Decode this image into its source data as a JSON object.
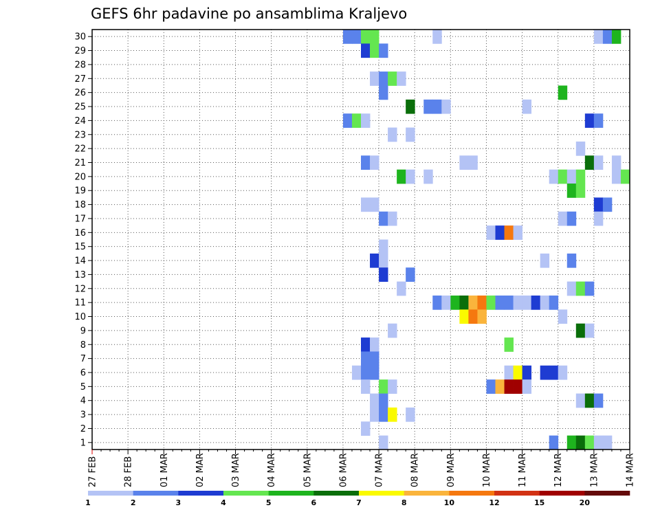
{
  "chart_data": {
    "type": "heatmap",
    "title": "GEFS 6hr padavine po ansamblima Kraljevo",
    "x_dates": [
      "27 FEB",
      "28 FEB",
      "01 MAR",
      "02 MAR",
      "03 MAR",
      "04 MAR",
      "05 MAR",
      "06 MAR",
      "07 MAR",
      "08 MAR",
      "09 MAR",
      "10 MAR",
      "11 MAR",
      "12 MAR",
      "13 MAR",
      "14 MAR"
    ],
    "ylim": [
      0.5,
      30.5
    ],
    "y_ticks": [
      "1",
      "2",
      "3",
      "4",
      "5",
      "6",
      "7",
      "8",
      "9",
      "10",
      "11",
      "12",
      "13",
      "14",
      "15",
      "16",
      "17",
      "18",
      "19",
      "20",
      "21",
      "22",
      "23",
      "24",
      "25",
      "26",
      "27",
      "28",
      "29",
      "30"
    ],
    "grid": "dotted",
    "legend": {
      "placement": "bottom",
      "labels": [
        "1",
        "2",
        "3",
        "4",
        "5",
        "6",
        "7",
        "8",
        "10",
        "12",
        "15",
        "20"
      ],
      "colors": [
        "#b4c3f5",
        "#5a82eb",
        "#1e3cd2",
        "#64e650",
        "#1eb41e",
        "#0a6e0a",
        "#fafa00",
        "#fab43c",
        "#f5780f",
        "#d23214",
        "#a00000",
        "#640a0a"
      ]
    },
    "cell_days": 0.25,
    "cells": [
      {
        "ens": 30,
        "t": 7.0,
        "c": 1
      },
      {
        "ens": 30,
        "t": 7.25,
        "c": 1
      },
      {
        "ens": 30,
        "t": 7.5,
        "c": 3
      },
      {
        "ens": 30,
        "t": 7.75,
        "c": 3
      },
      {
        "ens": 30,
        "t": 9.5,
        "c": 0
      },
      {
        "ens": 30,
        "t": 14.0,
        "c": 0
      },
      {
        "ens": 30,
        "t": 14.25,
        "c": 1
      },
      {
        "ens": 30,
        "t": 14.5,
        "c": 4
      },
      {
        "ens": 29,
        "t": 7.5,
        "c": 2
      },
      {
        "ens": 29,
        "t": 7.75,
        "c": 3
      },
      {
        "ens": 29,
        "t": 8.0,
        "c": 1
      },
      {
        "ens": 27,
        "t": 7.75,
        "c": 0
      },
      {
        "ens": 27,
        "t": 8.0,
        "c": 1
      },
      {
        "ens": 27,
        "t": 8.25,
        "c": 3
      },
      {
        "ens": 27,
        "t": 8.5,
        "c": 0
      },
      {
        "ens": 26,
        "t": 8.0,
        "c": 1
      },
      {
        "ens": 26,
        "t": 13.0,
        "c": 4
      },
      {
        "ens": 25,
        "t": 8.75,
        "c": 5
      },
      {
        "ens": 25,
        "t": 9.25,
        "c": 1
      },
      {
        "ens": 25,
        "t": 9.5,
        "c": 1
      },
      {
        "ens": 25,
        "t": 9.75,
        "c": 0
      },
      {
        "ens": 25,
        "t": 12.0,
        "c": 0
      },
      {
        "ens": 24,
        "t": 7.0,
        "c": 1
      },
      {
        "ens": 24,
        "t": 7.25,
        "c": 3
      },
      {
        "ens": 24,
        "t": 7.5,
        "c": 0
      },
      {
        "ens": 24,
        "t": 13.75,
        "c": 2
      },
      {
        "ens": 24,
        "t": 14.0,
        "c": 1
      },
      {
        "ens": 23,
        "t": 8.25,
        "c": 0
      },
      {
        "ens": 23,
        "t": 8.75,
        "c": 0
      },
      {
        "ens": 22,
        "t": 13.5,
        "c": 0
      },
      {
        "ens": 21,
        "t": 7.5,
        "c": 1
      },
      {
        "ens": 21,
        "t": 7.75,
        "c": 0
      },
      {
        "ens": 21,
        "t": 10.25,
        "c": 0
      },
      {
        "ens": 21,
        "t": 10.5,
        "c": 0
      },
      {
        "ens": 21,
        "t": 13.75,
        "c": 5
      },
      {
        "ens": 21,
        "t": 14.0,
        "c": 0
      },
      {
        "ens": 21,
        "t": 14.5,
        "c": 0
      },
      {
        "ens": 20,
        "t": 8.5,
        "c": 4
      },
      {
        "ens": 20,
        "t": 8.75,
        "c": 0
      },
      {
        "ens": 20,
        "t": 9.25,
        "c": 0
      },
      {
        "ens": 20,
        "t": 12.75,
        "c": 0
      },
      {
        "ens": 20,
        "t": 13.0,
        "c": 3
      },
      {
        "ens": 20,
        "t": 13.25,
        "c": 0
      },
      {
        "ens": 20,
        "t": 13.5,
        "c": 3
      },
      {
        "ens": 20,
        "t": 14.5,
        "c": 0
      },
      {
        "ens": 20,
        "t": 14.75,
        "c": 3
      },
      {
        "ens": 19,
        "t": 13.25,
        "c": 4
      },
      {
        "ens": 19,
        "t": 13.5,
        "c": 3
      },
      {
        "ens": 18,
        "t": 7.5,
        "c": 0
      },
      {
        "ens": 18,
        "t": 7.75,
        "c": 0
      },
      {
        "ens": 18,
        "t": 14.0,
        "c": 2
      },
      {
        "ens": 18,
        "t": 14.25,
        "c": 1
      },
      {
        "ens": 17,
        "t": 8.0,
        "c": 1
      },
      {
        "ens": 17,
        "t": 8.25,
        "c": 0
      },
      {
        "ens": 17,
        "t": 13.0,
        "c": 0
      },
      {
        "ens": 17,
        "t": 13.25,
        "c": 1
      },
      {
        "ens": 17,
        "t": 14.0,
        "c": 0
      },
      {
        "ens": 16,
        "t": 11.0,
        "c": 0
      },
      {
        "ens": 16,
        "t": 11.25,
        "c": 2
      },
      {
        "ens": 16,
        "t": 11.5,
        "c": 8
      },
      {
        "ens": 16,
        "t": 11.75,
        "c": 0
      },
      {
        "ens": 15,
        "t": 8.0,
        "c": 0
      },
      {
        "ens": 14,
        "t": 7.75,
        "c": 2
      },
      {
        "ens": 14,
        "t": 8.0,
        "c": 0
      },
      {
        "ens": 14,
        "t": 12.5,
        "c": 0
      },
      {
        "ens": 14,
        "t": 13.25,
        "c": 1
      },
      {
        "ens": 13,
        "t": 8.0,
        "c": 2
      },
      {
        "ens": 13,
        "t": 8.75,
        "c": 1
      },
      {
        "ens": 12,
        "t": 8.5,
        "c": 0
      },
      {
        "ens": 12,
        "t": 13.25,
        "c": 0
      },
      {
        "ens": 12,
        "t": 13.5,
        "c": 3
      },
      {
        "ens": 12,
        "t": 13.75,
        "c": 1
      },
      {
        "ens": 11,
        "t": 9.5,
        "c": 1
      },
      {
        "ens": 11,
        "t": 9.75,
        "c": 0
      },
      {
        "ens": 11,
        "t": 10.0,
        "c": 4
      },
      {
        "ens": 11,
        "t": 10.25,
        "c": 5
      },
      {
        "ens": 11,
        "t": 10.5,
        "c": 7
      },
      {
        "ens": 11,
        "t": 10.75,
        "c": 8
      },
      {
        "ens": 11,
        "t": 11.0,
        "c": 3
      },
      {
        "ens": 11,
        "t": 11.25,
        "c": 1
      },
      {
        "ens": 11,
        "t": 11.5,
        "c": 1
      },
      {
        "ens": 11,
        "t": 11.75,
        "c": 0
      },
      {
        "ens": 11,
        "t": 12.0,
        "c": 0
      },
      {
        "ens": 11,
        "t": 12.25,
        "c": 2
      },
      {
        "ens": 11,
        "t": 12.5,
        "c": 0
      },
      {
        "ens": 11,
        "t": 12.75,
        "c": 1
      },
      {
        "ens": 10,
        "t": 10.25,
        "c": 6
      },
      {
        "ens": 10,
        "t": 10.5,
        "c": 8
      },
      {
        "ens": 10,
        "t": 10.75,
        "c": 7
      },
      {
        "ens": 10,
        "t": 13.0,
        "c": 0
      },
      {
        "ens": 9,
        "t": 8.25,
        "c": 0
      },
      {
        "ens": 9,
        "t": 13.5,
        "c": 5
      },
      {
        "ens": 9,
        "t": 13.75,
        "c": 0
      },
      {
        "ens": 8,
        "t": 7.5,
        "c": 2
      },
      {
        "ens": 8,
        "t": 7.75,
        "c": 0
      },
      {
        "ens": 8,
        "t": 11.5,
        "c": 3
      },
      {
        "ens": 7,
        "t": 7.5,
        "c": 1
      },
      {
        "ens": 7,
        "t": 7.75,
        "c": 1
      },
      {
        "ens": 6,
        "t": 7.25,
        "c": 0
      },
      {
        "ens": 6,
        "t": 7.5,
        "c": 1
      },
      {
        "ens": 6,
        "t": 7.75,
        "c": 1
      },
      {
        "ens": 6,
        "t": 11.5,
        "c": 0
      },
      {
        "ens": 6,
        "t": 11.75,
        "c": 6
      },
      {
        "ens": 6,
        "t": 12.0,
        "c": 2
      },
      {
        "ens": 6,
        "t": 12.5,
        "c": 2
      },
      {
        "ens": 6,
        "t": 12.75,
        "c": 2
      },
      {
        "ens": 6,
        "t": 13.0,
        "c": 0
      },
      {
        "ens": 5,
        "t": 7.5,
        "c": 0
      },
      {
        "ens": 5,
        "t": 8.0,
        "c": 3
      },
      {
        "ens": 5,
        "t": 8.25,
        "c": 0
      },
      {
        "ens": 5,
        "t": 11.0,
        "c": 1
      },
      {
        "ens": 5,
        "t": 11.25,
        "c": 7
      },
      {
        "ens": 5,
        "t": 11.5,
        "c": 10
      },
      {
        "ens": 5,
        "t": 11.75,
        "c": 10
      },
      {
        "ens": 5,
        "t": 12.0,
        "c": 0
      },
      {
        "ens": 4,
        "t": 7.75,
        "c": 0
      },
      {
        "ens": 4,
        "t": 8.0,
        "c": 1
      },
      {
        "ens": 4,
        "t": 13.5,
        "c": 0
      },
      {
        "ens": 4,
        "t": 13.75,
        "c": 5
      },
      {
        "ens": 4,
        "t": 14.0,
        "c": 1
      },
      {
        "ens": 3,
        "t": 7.75,
        "c": 0
      },
      {
        "ens": 3,
        "t": 8.0,
        "c": 1
      },
      {
        "ens": 3,
        "t": 8.25,
        "c": 6
      },
      {
        "ens": 3,
        "t": 8.75,
        "c": 0
      },
      {
        "ens": 2,
        "t": 7.5,
        "c": 0
      },
      {
        "ens": 1,
        "t": 8.0,
        "c": 0
      },
      {
        "ens": 1,
        "t": 12.75,
        "c": 1
      },
      {
        "ens": 1,
        "t": 13.25,
        "c": 4
      },
      {
        "ens": 1,
        "t": 13.5,
        "c": 5
      },
      {
        "ens": 1,
        "t": 13.75,
        "c": 3
      },
      {
        "ens": 1,
        "t": 14.0,
        "c": 0
      },
      {
        "ens": 1,
        "t": 14.25,
        "c": 0
      }
    ]
  }
}
